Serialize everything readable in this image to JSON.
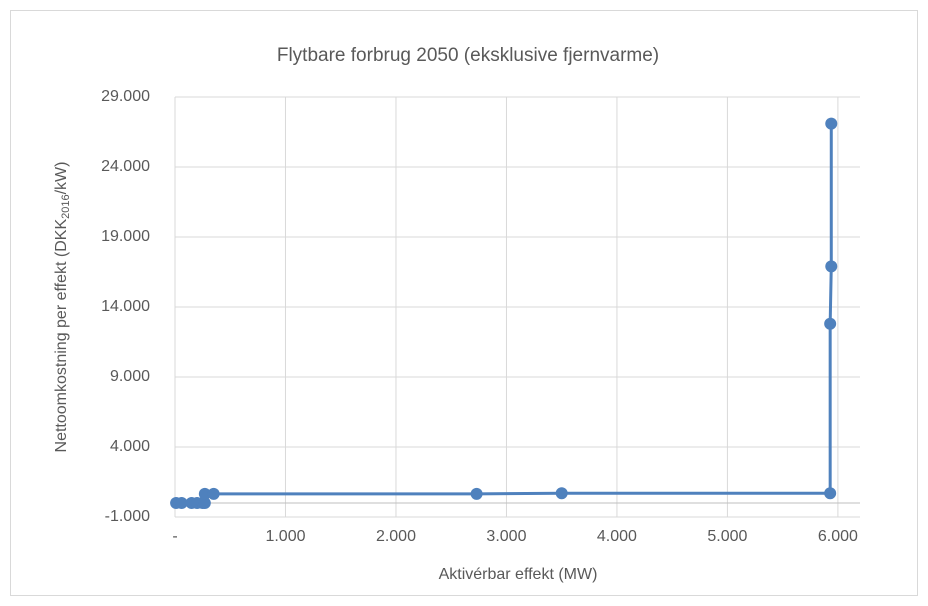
{
  "chart_data": {
    "type": "scatter",
    "title": "Flytbare forbrug 2050 (eksklusive fjernvarme)",
    "x_label": "Aktivérbar effekt (MW)",
    "y_label": {
      "prefix": "Nettoomkostning per effekt (DKK",
      "sub": "2016",
      "suffix": "/kW)"
    },
    "xlim": [
      0,
      6200
    ],
    "ylim": [
      -1000,
      29000
    ],
    "xticks": [
      {
        "value": 0,
        "label": "-"
      },
      {
        "value": 1000,
        "label": "1.000"
      },
      {
        "value": 2000,
        "label": "2.000"
      },
      {
        "value": 3000,
        "label": "3.000"
      },
      {
        "value": 4000,
        "label": "4.000"
      },
      {
        "value": 5000,
        "label": "5.000"
      },
      {
        "value": 6000,
        "label": "6.000"
      }
    ],
    "yticks": [
      {
        "value": -1000,
        "label": "-1.000"
      },
      {
        "value": 4000,
        "label": "4.000"
      },
      {
        "value": 9000,
        "label": "9.000"
      },
      {
        "value": 14000,
        "label": "14.000"
      },
      {
        "value": 19000,
        "label": "19.000"
      },
      {
        "value": 24000,
        "label": "24.000"
      },
      {
        "value": 29000,
        "label": "29.000"
      }
    ],
    "grid": true,
    "series": [
      {
        "color": "#4f81bd",
        "x": [
          10,
          60,
          150,
          200,
          250,
          270,
          270,
          350,
          2730,
          3500,
          5930,
          5930,
          5940,
          5940
        ],
        "values": [
          0,
          0,
          0,
          0,
          0,
          0,
          650,
          650,
          650,
          700,
          700,
          12800,
          16900,
          27100
        ]
      }
    ]
  }
}
